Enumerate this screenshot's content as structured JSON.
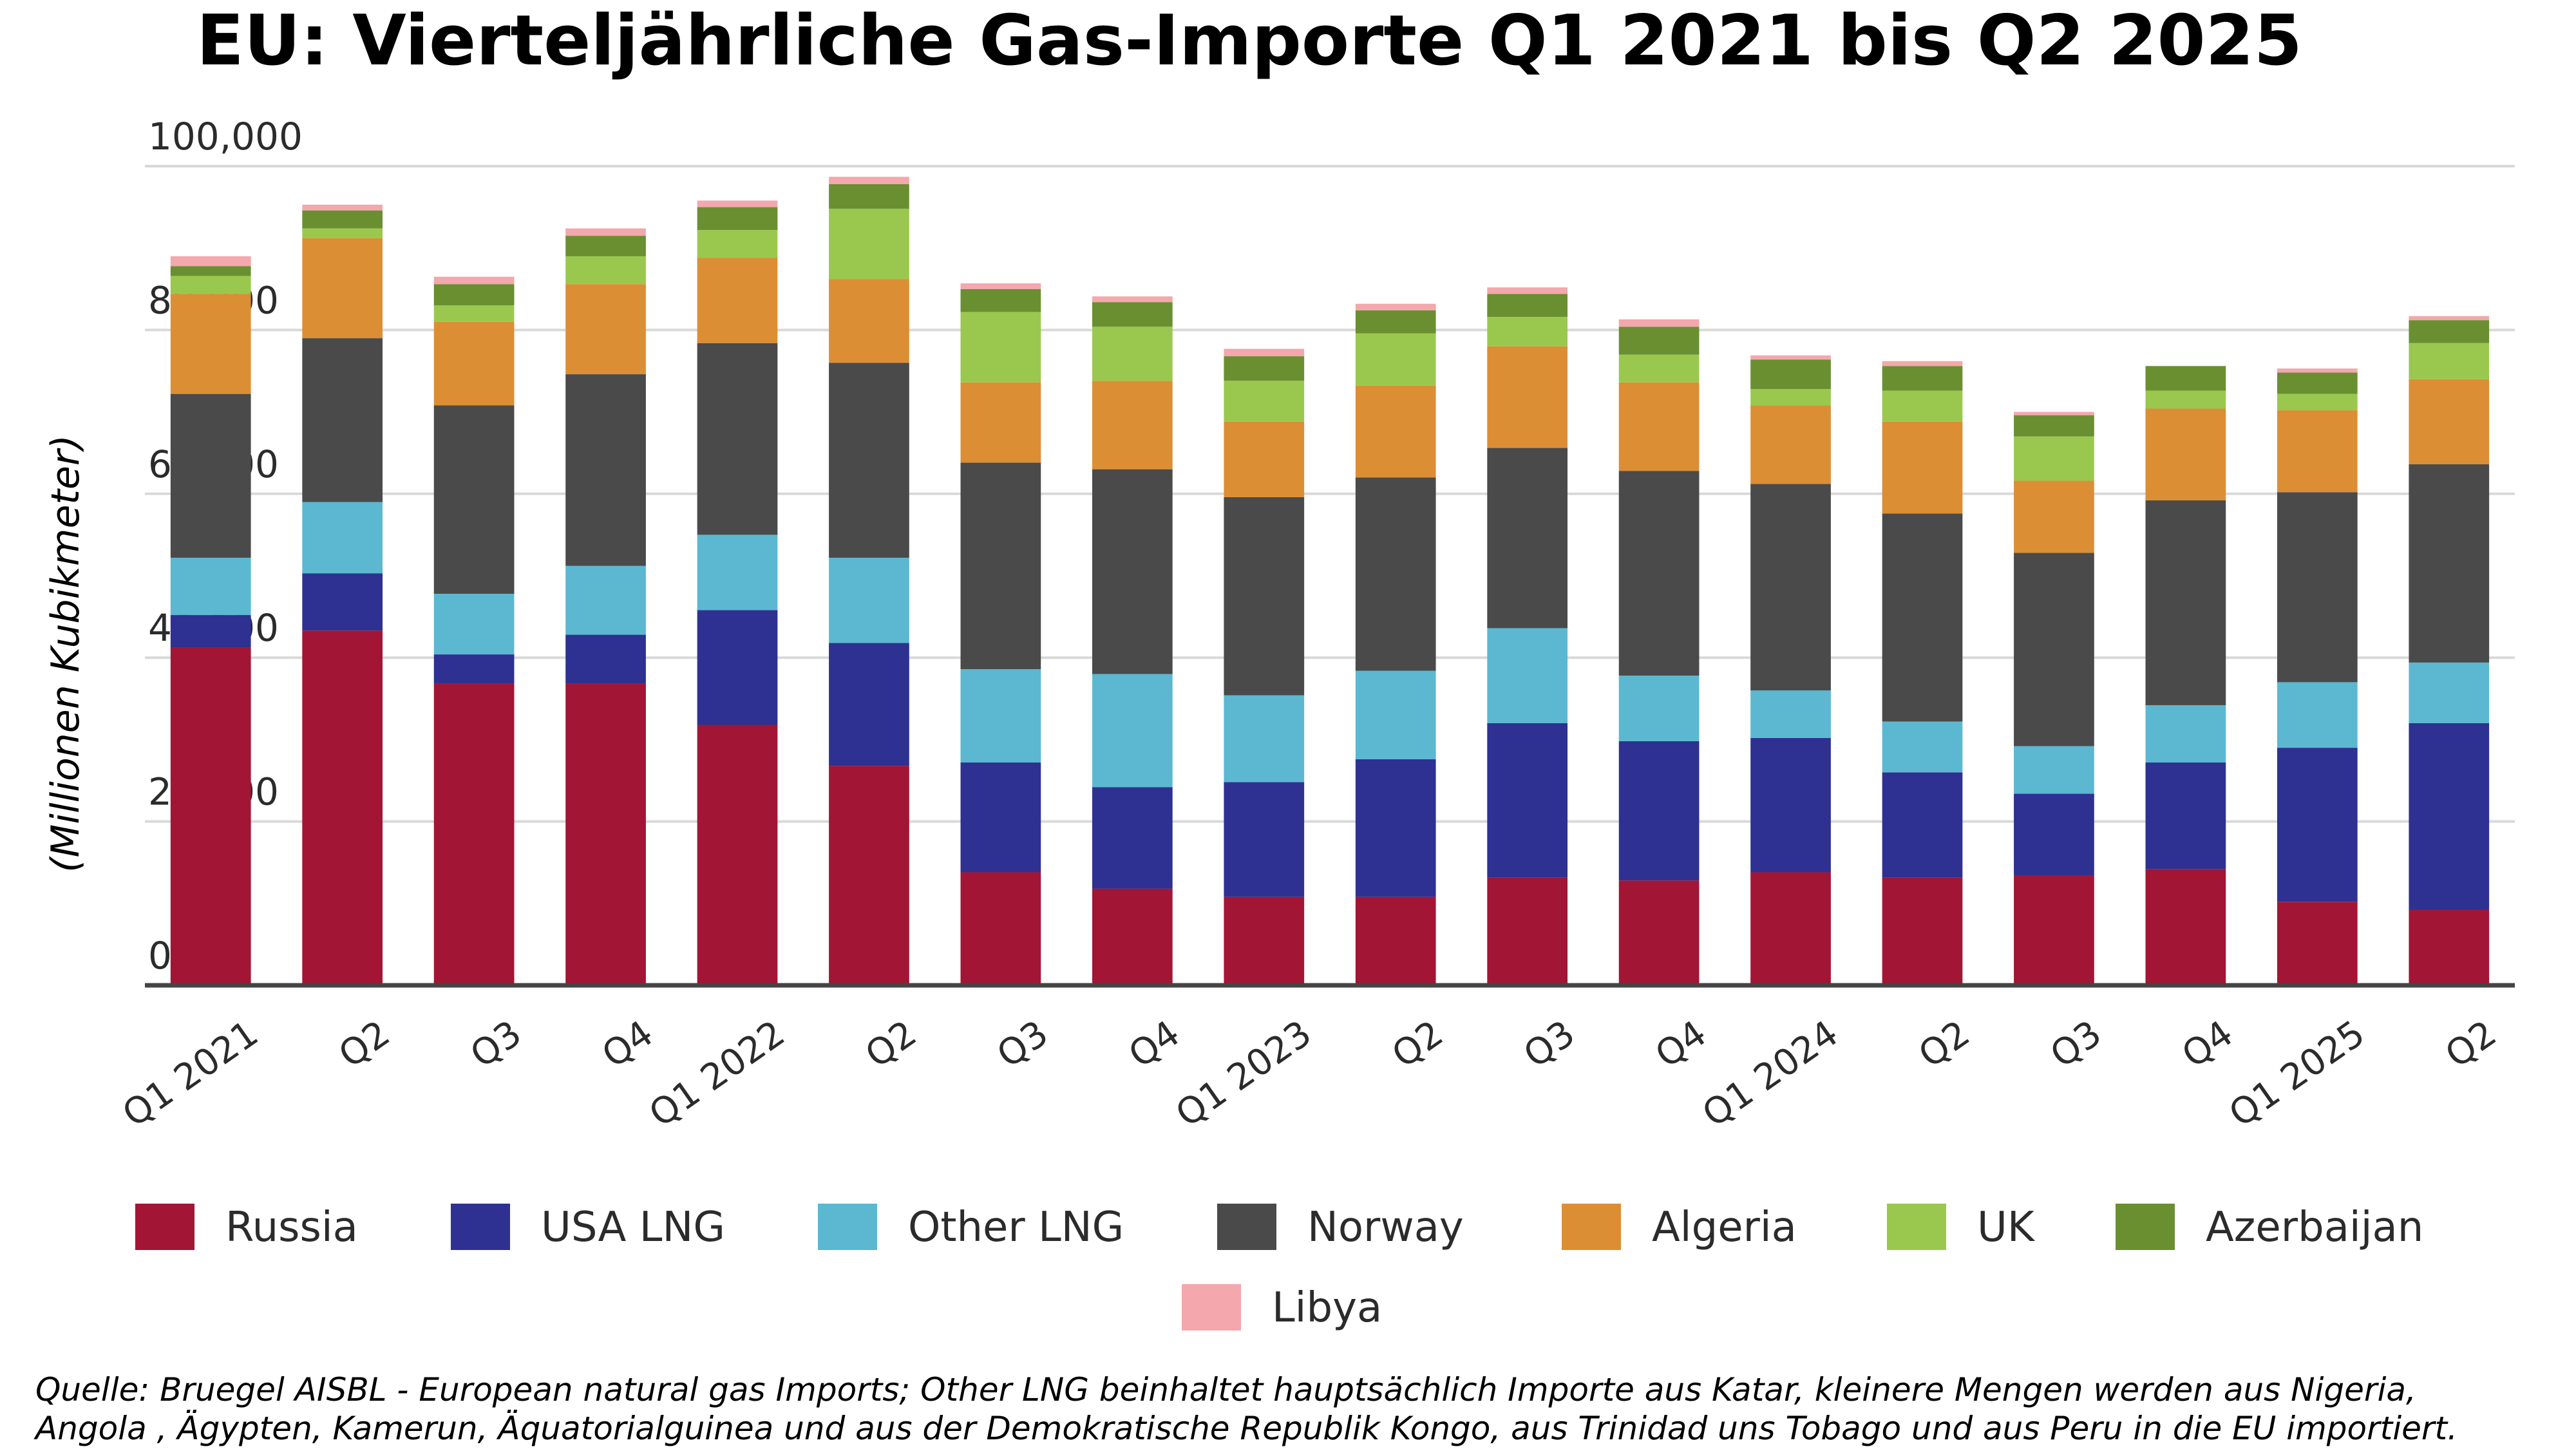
{
  "chart_data": {
    "type": "bar",
    "stacked": true,
    "title": "EU: Vierteljährliche Gas-Importe Q1 2021 bis Q2 2025",
    "ylabel": "(Millionen Kubikmeter)",
    "xlabel": "",
    "ylim": [
      0,
      100000
    ],
    "yticks": [
      0,
      20000,
      40000,
      60000,
      80000,
      100000
    ],
    "ytick_labels": [
      "0",
      "20,000",
      "40,000",
      "60,000",
      "80,000",
      "100,000"
    ],
    "grid": true,
    "legend_position": "bottom",
    "categories": [
      "Q1 2021",
      "Q2",
      "Q3",
      "Q4",
      "Q1 2022",
      "Q2",
      "Q3",
      "Q4",
      "Q1 2023",
      "Q2",
      "Q3",
      "Q4",
      "Q1 2024",
      "Q2",
      "Q3",
      "Q4",
      "Q1 2025",
      "Q2"
    ],
    "series": [
      {
        "name": "Russia",
        "color": "#A31535",
        "values": [
          41200,
          43300,
          36800,
          36800,
          31800,
          26800,
          13800,
          11800,
          10800,
          10800,
          13200,
          12800,
          13800,
          13200,
          13400,
          14200,
          10200,
          9200
        ]
      },
      {
        "name": "USA LNG",
        "color": "#2E3191",
        "values": [
          4000,
          7000,
          3600,
          6000,
          14000,
          15000,
          13400,
          12400,
          14000,
          16800,
          18800,
          17000,
          16400,
          12800,
          10000,
          13000,
          18800,
          22800
        ]
      },
      {
        "name": "Other LNG",
        "color": "#5BB8D0",
        "values": [
          7000,
          8700,
          7400,
          8400,
          9200,
          10400,
          11400,
          13800,
          10600,
          10800,
          11600,
          8000,
          5800,
          6200,
          5800,
          7000,
          8000,
          7400
        ]
      },
      {
        "name": "Norway",
        "color": "#4A4A4A",
        "values": [
          20000,
          20000,
          23000,
          23400,
          23400,
          23800,
          25200,
          25000,
          24200,
          23600,
          22000,
          25000,
          25200,
          25400,
          23600,
          25000,
          23200,
          24200
        ]
      },
      {
        "name": "Algeria",
        "color": "#DC8E35",
        "values": [
          12200,
          12200,
          10200,
          11000,
          10400,
          10200,
          9800,
          10800,
          9200,
          11200,
          12400,
          10800,
          9600,
          11200,
          8800,
          11200,
          10000,
          10400
        ]
      },
      {
        "name": "UK",
        "color": "#9AC84F",
        "values": [
          2200,
          1200,
          2000,
          3400,
          3400,
          8600,
          8600,
          6600,
          5000,
          6400,
          3600,
          3400,
          2000,
          3800,
          5400,
          2200,
          2000,
          4400
        ]
      },
      {
        "name": "Azerbaijan",
        "color": "#6A8F31",
        "values": [
          1200,
          2200,
          2600,
          2500,
          2800,
          3000,
          2800,
          3000,
          3000,
          2800,
          2800,
          3400,
          3600,
          3000,
          2600,
          3000,
          2600,
          2800
        ]
      },
      {
        "name": "Libya",
        "color": "#F4A7AC",
        "values": [
          1200,
          700,
          900,
          900,
          800,
          900,
          700,
          700,
          900,
          800,
          800,
          900,
          500,
          600,
          400,
          0,
          500,
          500
        ]
      }
    ],
    "source": [
      "Quelle: Bruegel AISBL - European natural gas Imports; Other LNG beinhaltet hauptsächlich Importe aus Katar, kleinere Mengen werden aus Nigeria,",
      "Angola , Ägypten, Kamerun, Äquatorialguinea und aus der Demokratische Republik Kongo, aus Trinidad uns Tobago und aus Peru  in die EU importiert."
    ]
  }
}
